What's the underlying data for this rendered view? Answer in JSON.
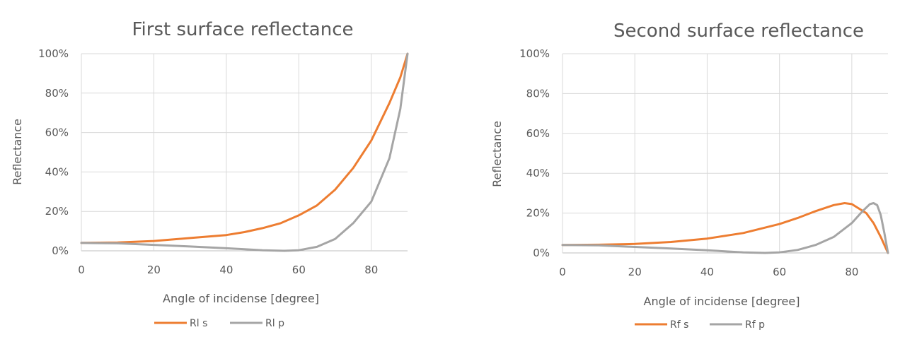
{
  "colors": {
    "s_series": "#ed7d31",
    "p_series": "#a5a5a5",
    "grid": "#d9d9d9",
    "text": "#595959"
  },
  "chart_data": [
    {
      "type": "line",
      "title": "First surface reflectance",
      "xlabel": "Angle of incidense [degree]",
      "ylabel": "Reflectance",
      "xlim": [
        0,
        90
      ],
      "ylim": [
        0,
        1
      ],
      "x_ticks": [
        0,
        20,
        40,
        60,
        80
      ],
      "x_tick_labels": [
        "0",
        "20",
        "40",
        "60",
        "80"
      ],
      "y_ticks": [
        0,
        0.2,
        0.4,
        0.6,
        0.8,
        1.0
      ],
      "y_tick_labels": [
        "0%",
        "20%",
        "40%",
        "60%",
        "80%",
        "100%"
      ],
      "grid": true,
      "legend_position": "bottom",
      "series": [
        {
          "name": "Rl s",
          "x": [
            0,
            10,
            20,
            30,
            40,
            45,
            50,
            55,
            60,
            65,
            70,
            75,
            80,
            85,
            88,
            90
          ],
          "y": [
            0.04,
            0.042,
            0.05,
            0.065,
            0.08,
            0.095,
            0.115,
            0.14,
            0.18,
            0.23,
            0.31,
            0.42,
            0.56,
            0.75,
            0.88,
            1.0
          ]
        },
        {
          "name": "Rl p",
          "x": [
            0,
            10,
            20,
            30,
            40,
            45,
            50,
            55,
            56,
            60,
            65,
            70,
            75,
            80,
            85,
            88,
            90
          ],
          "y": [
            0.04,
            0.038,
            0.03,
            0.022,
            0.013,
            0.008,
            0.003,
            0.0005,
            0,
            0.003,
            0.02,
            0.06,
            0.14,
            0.25,
            0.47,
            0.72,
            1.0
          ]
        }
      ]
    },
    {
      "type": "line",
      "title": "Second surface reflectance",
      "xlabel": "Angle of incidense [degree]",
      "ylabel": "Reflectance",
      "xlim": [
        0,
        90
      ],
      "ylim": [
        0,
        1
      ],
      "x_ticks": [
        0,
        20,
        40,
        60,
        80
      ],
      "x_tick_labels": [
        "0",
        "20",
        "40",
        "60",
        "80"
      ],
      "y_ticks": [
        0,
        0.2,
        0.4,
        0.6,
        0.8,
        1.0
      ],
      "y_tick_labels": [
        "0%",
        "20%",
        "40%",
        "60%",
        "80%",
        "100%"
      ],
      "grid": true,
      "legend_position": "bottom",
      "series": [
        {
          "name": "Rf s",
          "x": [
            0,
            10,
            20,
            30,
            40,
            50,
            60,
            65,
            70,
            75,
            78,
            80,
            84,
            86,
            88,
            90
          ],
          "y": [
            0.04,
            0.041,
            0.045,
            0.055,
            0.072,
            0.1,
            0.145,
            0.175,
            0.21,
            0.24,
            0.25,
            0.245,
            0.2,
            0.15,
            0.08,
            0
          ]
        },
        {
          "name": "Rf p",
          "x": [
            0,
            10,
            20,
            30,
            40,
            50,
            55,
            56,
            60,
            65,
            70,
            75,
            80,
            83,
            85,
            86,
            87,
            88,
            89,
            90
          ],
          "y": [
            0.04,
            0.038,
            0.03,
            0.022,
            0.013,
            0.003,
            0.0005,
            0,
            0.003,
            0.015,
            0.04,
            0.08,
            0.15,
            0.21,
            0.245,
            0.25,
            0.24,
            0.19,
            0.1,
            0
          ]
        }
      ]
    }
  ]
}
